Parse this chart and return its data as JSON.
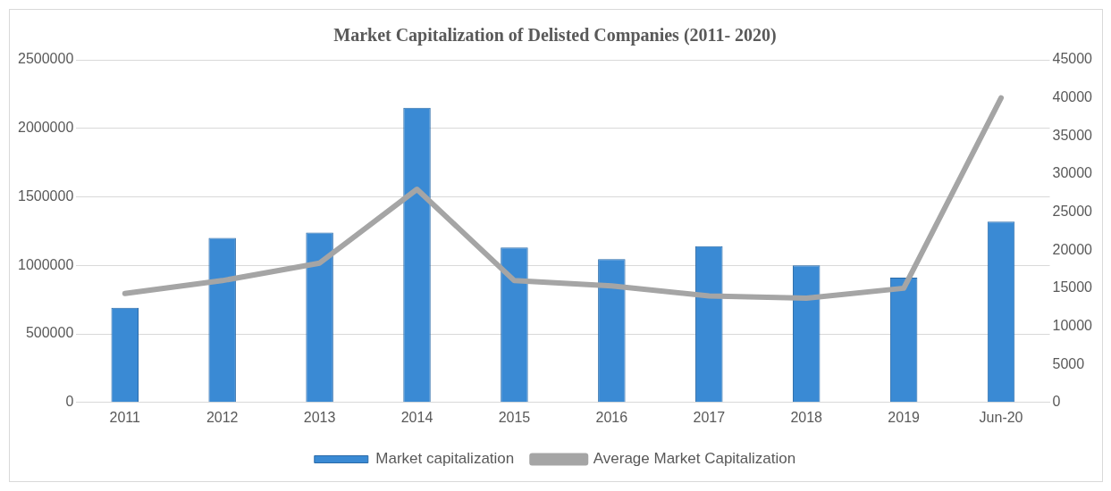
{
  "chart_data": {
    "type": "bar",
    "title": "Market Capitalization of Delisted Companies (2011- 2020)",
    "categories": [
      "2011",
      "2012",
      "2013",
      "2014",
      "2015",
      "2016",
      "2017",
      "2018",
      "2019",
      "Jun-20"
    ],
    "series": [
      {
        "name": "Market capitalization",
        "color": "#3a8ad4",
        "values": [
          690000,
          1200000,
          1240000,
          2150000,
          1130000,
          1045000,
          1140000,
          1000000,
          910000,
          1320000
        ]
      },
      {
        "name": "Average Market Capitalization",
        "type": "line",
        "axis": "y2",
        "color": "#a5a5a5",
        "values": [
          14300,
          16000,
          18300,
          28000,
          16000,
          15300,
          14000,
          13700,
          15000,
          40000
        ]
      }
    ],
    "ylim": [
      0,
      2500000
    ],
    "yticks": [
      0,
      500000,
      1000000,
      1500000,
      2000000,
      2500000
    ],
    "y2lim": [
      0,
      45000
    ],
    "y2ticks": [
      0,
      5000,
      10000,
      15000,
      20000,
      25000,
      30000,
      35000,
      40000,
      45000
    ],
    "grid": "y",
    "legend": "bottom",
    "marker": "none"
  }
}
